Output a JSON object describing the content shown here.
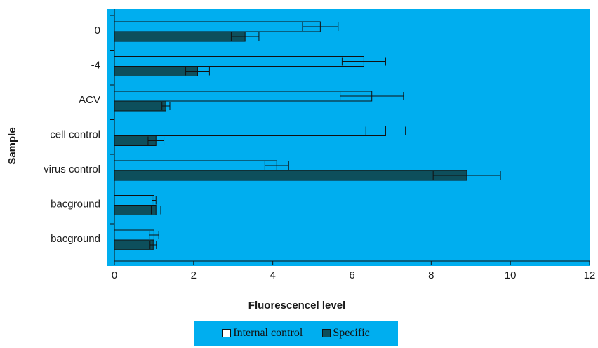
{
  "chart_data": {
    "type": "bar",
    "orientation": "horizontal",
    "categories": [
      "0",
      "-4",
      "ACV",
      "cell control",
      "virus control",
      "bacground",
      "bacground"
    ],
    "series": [
      {
        "name": "Internal control",
        "values": [
          5.2,
          6.3,
          6.5,
          6.85,
          4.1,
          1.0,
          1.0
        ],
        "errors": [
          0.45,
          0.55,
          0.8,
          0.5,
          0.3,
          0.05,
          0.12
        ]
      },
      {
        "name": "Specific",
        "values": [
          3.3,
          2.1,
          1.3,
          1.05,
          8.9,
          1.05,
          0.98
        ],
        "errors": [
          0.35,
          0.3,
          0.1,
          0.2,
          0.85,
          0.12,
          0.08
        ]
      }
    ],
    "xlabel": "Fluorescencel level",
    "ylabel": "Sample",
    "xlim": [
      0,
      12
    ],
    "xticks": [
      "0",
      "2",
      "4",
      "6",
      "8",
      "10",
      "12"
    ],
    "grid": false,
    "legend_position": "bottom",
    "colors": {
      "plot_background": "#00aeef",
      "internal_control": "#00aeef",
      "specific": "#0d4f5c",
      "bar_outline": "#111111"
    }
  }
}
